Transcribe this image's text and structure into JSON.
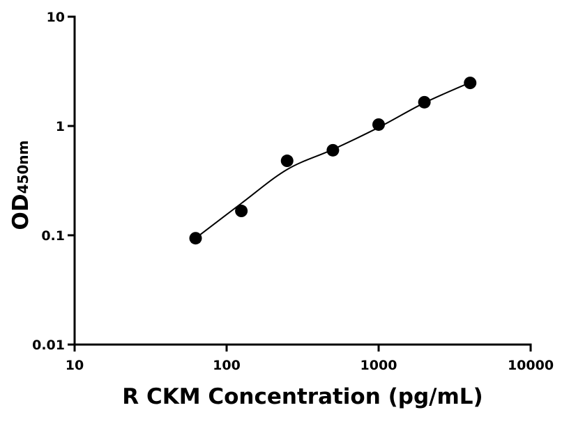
{
  "chart_data": {
    "type": "scatter",
    "x_label": "R CKM Concentration (pg/mL)",
    "y_label": "OD",
    "y_label_subscript": "450nm",
    "x": [
      62.5,
      125,
      250,
      500,
      1000,
      2000,
      4000
    ],
    "values": [
      0.094,
      0.167,
      0.48,
      0.6,
      1.03,
      1.65,
      2.48
    ],
    "color": "#000000",
    "fit": {
      "x": [
        62.5,
        125,
        250,
        500,
        1000,
        2000,
        4000
      ],
      "values": [
        0.094,
        0.196,
        0.4,
        0.61,
        0.97,
        1.63,
        2.5
      ]
    },
    "xlim": [
      10,
      10000
    ],
    "ylim": [
      0.01,
      10
    ],
    "xticks": [
      10,
      100,
      1000,
      10000
    ],
    "yticks": [
      0.01,
      0.1,
      1,
      10
    ],
    "xscale": "log",
    "yscale": "log",
    "grid": false
  }
}
